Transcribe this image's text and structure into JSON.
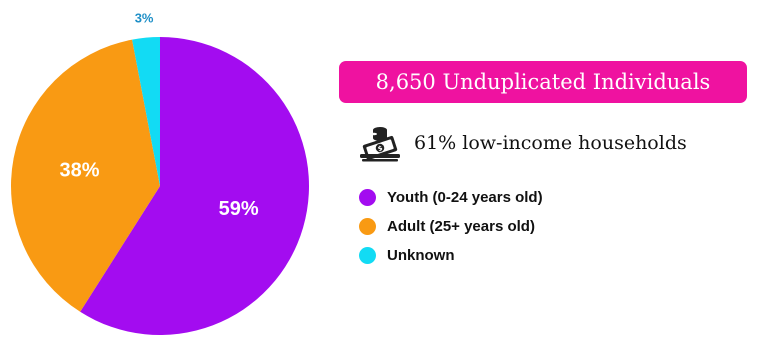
{
  "headline": "8,650 Unduplicated Individuals",
  "stat": {
    "icon": "money-stack-icon",
    "text": "61% low-income households"
  },
  "colors": {
    "accent": "#ef12a0"
  },
  "chart_data": {
    "type": "pie",
    "title": "",
    "series": [
      {
        "name": "Youth (0-24 years old)",
        "value": 59,
        "label": "59%",
        "color": "#a30cf0"
      },
      {
        "name": "Adult (25+ years old)",
        "value": 38,
        "label": "38%",
        "color": "#f99a13"
      },
      {
        "name": "Unknown",
        "value": 3,
        "label": "3%",
        "color": "#12dbf4"
      }
    ],
    "legend_position": "right"
  }
}
